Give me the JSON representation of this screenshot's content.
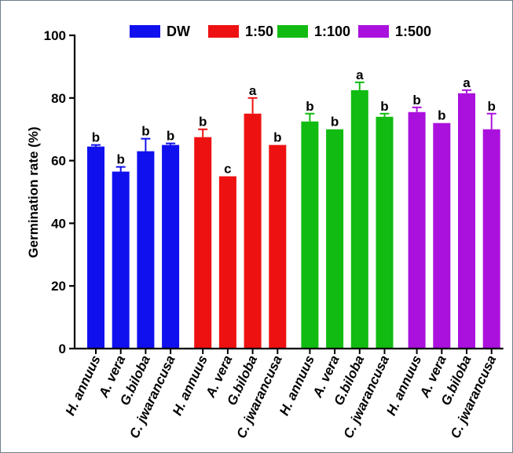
{
  "chart_data": {
    "type": "bar",
    "title": "",
    "xlabel": "",
    "ylabel": "Germination rate (%)",
    "ylim": [
      0,
      100
    ],
    "yticks": [
      "0",
      "20",
      "40",
      "60",
      "80",
      "100"
    ],
    "grid": false,
    "legend_position": "top",
    "categories": [
      "H. annuus",
      "A. vera",
      "G.biloba",
      "C. jwarancusa"
    ],
    "series": [
      {
        "name": "DW",
        "color": "#1010ee",
        "values": [
          64.5,
          56.5,
          63,
          65
        ],
        "errors": [
          0.5,
          1.5,
          4,
          0.5
        ],
        "letters": [
          "b",
          "b",
          "b",
          "b"
        ]
      },
      {
        "name": "1:50",
        "color": "#ee1111",
        "values": [
          67.5,
          55,
          75,
          65
        ],
        "errors": [
          2.5,
          0,
          5,
          0
        ],
        "letters": [
          "b",
          "c",
          "a",
          "b"
        ]
      },
      {
        "name": "1:100",
        "color": "#11bb11",
        "values": [
          72.5,
          70,
          82.5,
          74
        ],
        "errors": [
          2.5,
          0,
          2.5,
          1
        ],
        "letters": [
          "b",
          "b",
          "a",
          "b"
        ]
      },
      {
        "name": "1:500",
        "color": "#aa11dd",
        "values": [
          75.5,
          72,
          81.5,
          70
        ],
        "errors": [
          1.5,
          0,
          1,
          5
        ],
        "letters": [
          "b",
          "b",
          "a",
          "b"
        ]
      }
    ]
  }
}
